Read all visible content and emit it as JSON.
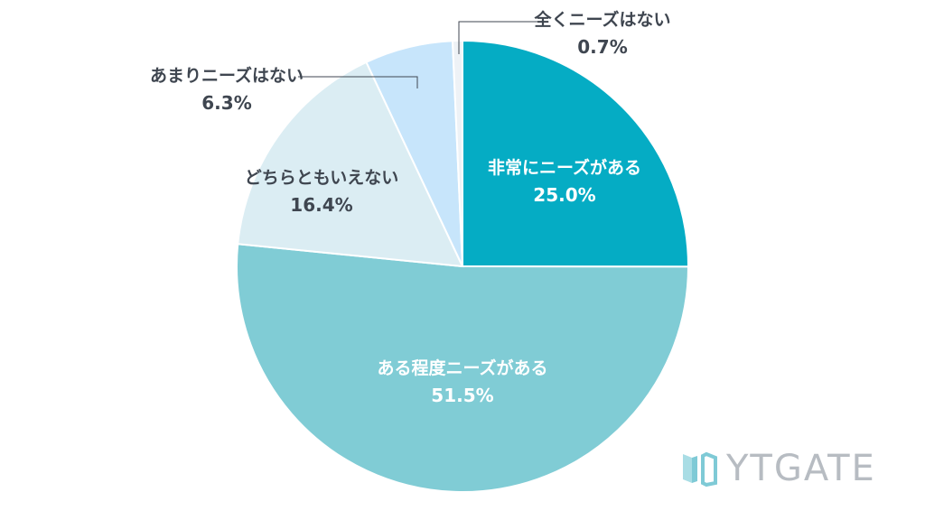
{
  "chart_data": {
    "type": "pie",
    "slices": [
      {
        "label": "非常にニーズがある",
        "value_label": "25.0%",
        "value": 25.0,
        "color": "#05acc4"
      },
      {
        "label": "ある程度ニーズがある",
        "value_label": "51.5%",
        "value": 51.5,
        "color": "#80ccd5"
      },
      {
        "label": "どちらともいえない",
        "value_label": "16.4%",
        "value": 16.4,
        "color": "#dbedf3"
      },
      {
        "label": "あまりニーズはない",
        "value_label": "6.3%",
        "value": 6.3,
        "color": "#c7e5fb"
      },
      {
        "label": "全くニーズはない",
        "value_label": "0.7%",
        "value": 0.7,
        "color": "#eef2f6"
      }
    ],
    "start_angle_deg": 0,
    "direction": "clockwise"
  },
  "logo": {
    "text": "YTGATE",
    "color": "#b7bcc2"
  }
}
